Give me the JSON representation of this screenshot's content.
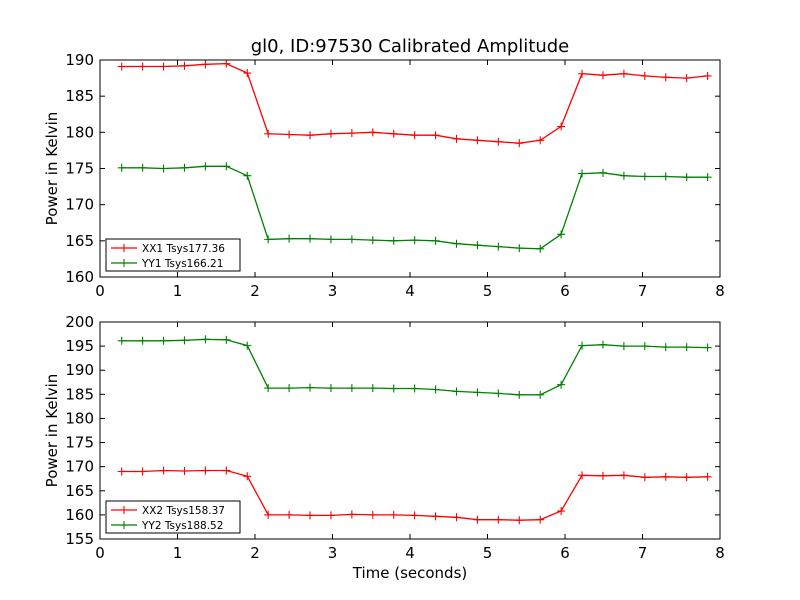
{
  "title": "gl0, ID:97530 Calibrated Amplitude",
  "colors": {
    "red": "#ff0000",
    "green": "#008000",
    "axis": "#000000"
  },
  "chart_data": [
    {
      "type": "line",
      "title": "gl0, ID:97530 Calibrated Amplitude",
      "xlabel": "",
      "ylabel": "Power in Kelvin",
      "xlim": [
        0,
        8
      ],
      "ylim": [
        160,
        190
      ],
      "xticks": [
        0,
        1,
        2,
        3,
        4,
        5,
        6,
        7,
        8
      ],
      "yticks": [
        160,
        165,
        170,
        175,
        180,
        185,
        190
      ],
      "legend_position": "lower-left",
      "x": [
        0.28,
        0.55,
        0.82,
        1.09,
        1.36,
        1.63,
        1.9,
        2.17,
        2.44,
        2.71,
        2.98,
        3.25,
        3.52,
        3.79,
        4.06,
        4.33,
        4.6,
        4.87,
        5.14,
        5.41,
        5.68,
        5.95,
        6.22,
        6.49,
        6.76,
        7.03,
        7.3,
        7.57,
        7.84
      ],
      "series": [
        {
          "name": "XX1 Tsys177.36",
          "color": "#ff0000",
          "values": [
            189.1,
            189.1,
            189.1,
            189.2,
            189.4,
            189.5,
            188.2,
            179.8,
            179.7,
            179.6,
            179.8,
            179.9,
            180.0,
            179.8,
            179.6,
            179.6,
            179.1,
            178.9,
            178.7,
            178.5,
            178.9,
            180.8,
            188.1,
            187.9,
            188.1,
            187.8,
            187.6,
            187.5,
            187.8
          ]
        },
        {
          "name": "YY1 Tsys166.21",
          "color": "#008000",
          "values": [
            175.1,
            175.1,
            175.0,
            175.1,
            175.3,
            175.3,
            174.0,
            165.2,
            165.3,
            165.3,
            165.2,
            165.2,
            165.1,
            165.0,
            165.1,
            165.0,
            164.6,
            164.4,
            164.2,
            164.0,
            163.9,
            165.9,
            174.3,
            174.4,
            174.0,
            173.9,
            173.9,
            173.8,
            173.8
          ]
        }
      ]
    },
    {
      "type": "line",
      "title": "",
      "xlabel": "Time (seconds)",
      "ylabel": "Power in Kelvin",
      "xlim": [
        0,
        8
      ],
      "ylim": [
        155,
        200
      ],
      "xticks": [
        0,
        1,
        2,
        3,
        4,
        5,
        6,
        7,
        8
      ],
      "yticks": [
        155,
        160,
        165,
        170,
        175,
        180,
        185,
        190,
        195,
        200
      ],
      "legend_position": "lower-left",
      "x": [
        0.28,
        0.55,
        0.82,
        1.09,
        1.36,
        1.63,
        1.9,
        2.17,
        2.44,
        2.71,
        2.98,
        3.25,
        3.52,
        3.79,
        4.06,
        4.33,
        4.6,
        4.87,
        5.14,
        5.41,
        5.68,
        5.95,
        6.22,
        6.49,
        6.76,
        7.03,
        7.3,
        7.57,
        7.84
      ],
      "series": [
        {
          "name": "XX2 Tsys158.37",
          "color": "#ff0000",
          "values": [
            169.0,
            169.0,
            169.2,
            169.1,
            169.2,
            169.2,
            168.0,
            160.0,
            160.0,
            159.9,
            159.9,
            160.1,
            160.0,
            160.0,
            159.9,
            159.7,
            159.5,
            159.0,
            159.0,
            158.9,
            159.0,
            160.8,
            168.2,
            168.1,
            168.2,
            167.8,
            167.9,
            167.8,
            167.9
          ]
        },
        {
          "name": "YY2 Tsys188.52",
          "color": "#008000",
          "values": [
            196.1,
            196.1,
            196.1,
            196.2,
            196.4,
            196.3,
            195.1,
            186.3,
            186.3,
            186.4,
            186.3,
            186.3,
            186.3,
            186.2,
            186.2,
            186.0,
            185.6,
            185.4,
            185.2,
            184.9,
            184.9,
            187.0,
            195.1,
            195.3,
            195.0,
            195.0,
            194.8,
            194.8,
            194.7
          ]
        }
      ]
    }
  ]
}
